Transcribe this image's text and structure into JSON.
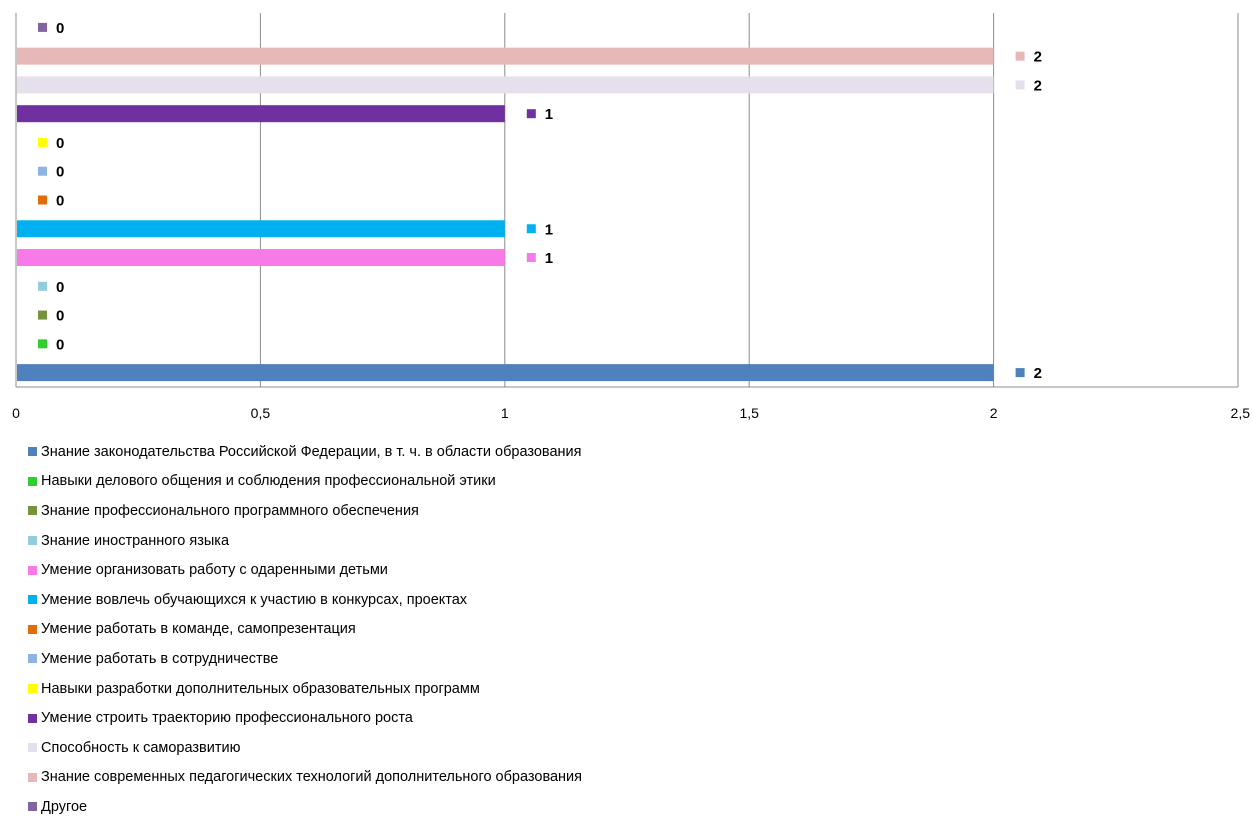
{
  "chart_data": {
    "type": "bar",
    "orientation": "horizontal",
    "xlim": [
      0,
      2.5
    ],
    "x_ticks": [
      "0",
      "0,5",
      "1",
      "1,5",
      "2",
      "2,5"
    ],
    "grid": true,
    "legend_position": "bottom",
    "series": [
      {
        "name": "Знание законодательства Российской Федерации, в т. ч. в области образования",
        "value": 2,
        "label": "2",
        "color": "#4F81BD"
      },
      {
        "name": "Навыки делового общения и соблюдения профессиональной этики",
        "value": 0,
        "label": "0",
        "color": "#2FCF2F"
      },
      {
        "name": "Знание профессионального программного обеспечения",
        "value": 0,
        "label": "0",
        "color": "#77933C"
      },
      {
        "name": "Знание иностранного языка",
        "value": 0,
        "label": "0",
        "color": "#93CDDD"
      },
      {
        "name": "Умение организовать работу с одаренными детьми",
        "value": 1,
        "label": "1",
        "color": "#F77AE8"
      },
      {
        "name": "Умение вовлечь обучающихся к участию в конкурсах, проектах",
        "value": 1,
        "label": "1",
        "color": "#00B0F0"
      },
      {
        "name": "Умение работать в команде, самопрезентация",
        "value": 0,
        "label": "0",
        "color": "#E36C09"
      },
      {
        "name": "Умение работать в сотрудничестве",
        "value": 0,
        "label": "0",
        "color": "#8DB4E2"
      },
      {
        "name": "Навыки разработки дополнительных образовательных программ",
        "value": 0,
        "label": "0",
        "color": "#FFFF00"
      },
      {
        "name": "Умение строить траекторию профессионального роста",
        "value": 1,
        "label": "1",
        "color": "#7030A0"
      },
      {
        "name": "Способность к саморазвитию",
        "value": 2,
        "label": "2",
        "color": "#E6E0EC"
      },
      {
        "name": "Знание современных педагогических технологий дополнительного образования",
        "value": 2,
        "label": "2",
        "color": "#E6B9B8"
      },
      {
        "name": "Другое",
        "value": 0,
        "label": "0",
        "color": "#8064A2"
      }
    ]
  }
}
